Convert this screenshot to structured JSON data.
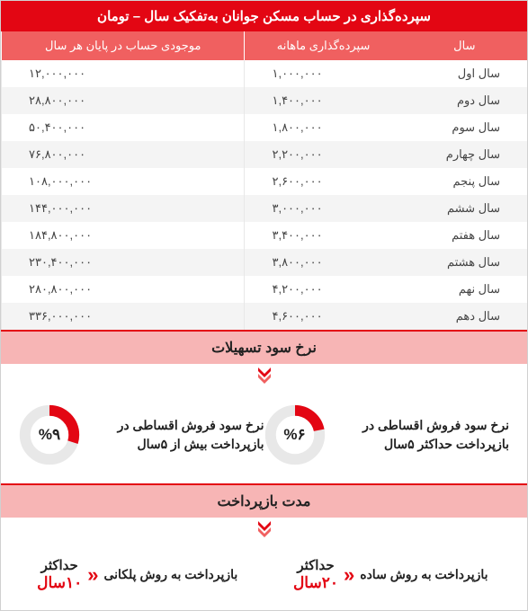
{
  "colors": {
    "primary_red": "#e30613",
    "header_row_red": "#f06060",
    "section_pink": "#f7b5b5",
    "row_alt": "#f4f4f4",
    "text": "#444444",
    "border": "#d0d0d0",
    "donut_track": "#e8e8e8"
  },
  "main_header": "سپرده‌گذاری در حساب مسکن جوانان به‌تفکیک سال – تومان",
  "table": {
    "columns": [
      "سال",
      "سپرده‌گذاری ماهانه",
      "موجودی حساب در پایان هر سال"
    ],
    "rows": [
      [
        "سال اول",
        "۱,۰۰۰,۰۰۰",
        "۱۲,۰۰۰,۰۰۰"
      ],
      [
        "سال دوم",
        "۱,۴۰۰,۰۰۰",
        "۲۸,۸۰۰,۰۰۰"
      ],
      [
        "سال سوم",
        "۱,۸۰۰,۰۰۰",
        "۵۰,۴۰۰,۰۰۰"
      ],
      [
        "سال چهارم",
        "۲,۲۰۰,۰۰۰",
        "۷۶,۸۰۰,۰۰۰"
      ],
      [
        "سال پنجم",
        "۲,۶۰۰,۰۰۰",
        "۱۰۸,۰۰۰,۰۰۰"
      ],
      [
        "سال ششم",
        "۳,۰۰۰,۰۰۰",
        "۱۴۴,۰۰۰,۰۰۰"
      ],
      [
        "سال هفتم",
        "۳,۴۰۰,۰۰۰",
        "۱۸۴,۸۰۰,۰۰۰"
      ],
      [
        "سال هشتم",
        "۳,۸۰۰,۰۰۰",
        "۲۳۰,۴۰۰,۰۰۰"
      ],
      [
        "سال نهم",
        "۴,۲۰۰,۰۰۰",
        "۲۸۰,۸۰۰,۰۰۰"
      ],
      [
        "سال دهم",
        "۴,۶۰۰,۰۰۰",
        "۳۳۶,۰۰۰,۰۰۰"
      ]
    ]
  },
  "section_rate": {
    "title": "نرخ سود تسهیلات",
    "items": [
      {
        "text": "نرخ سود فروش اقساطی در بازپرداخت حداکثر ۵سال",
        "percent_label": "%۶",
        "percent_val": 6,
        "fill_pct": 22
      },
      {
        "text": "نرخ سود فروش اقساطی در بازپرداخت بیش از ۵سال",
        "percent_label": "%۹",
        "percent_val": 9,
        "fill_pct": 30
      }
    ]
  },
  "section_repay": {
    "title": "مدت بازپرداخت",
    "items": [
      {
        "text": "بازپرداخت به روش ساده",
        "box_top": "حداکثر",
        "box_bottom": "۲۰سال"
      },
      {
        "text": "بازپرداخت به روش پلکانی",
        "box_top": "حداکثر",
        "box_bottom": "۱۰سال"
      }
    ]
  },
  "chevron": "«"
}
